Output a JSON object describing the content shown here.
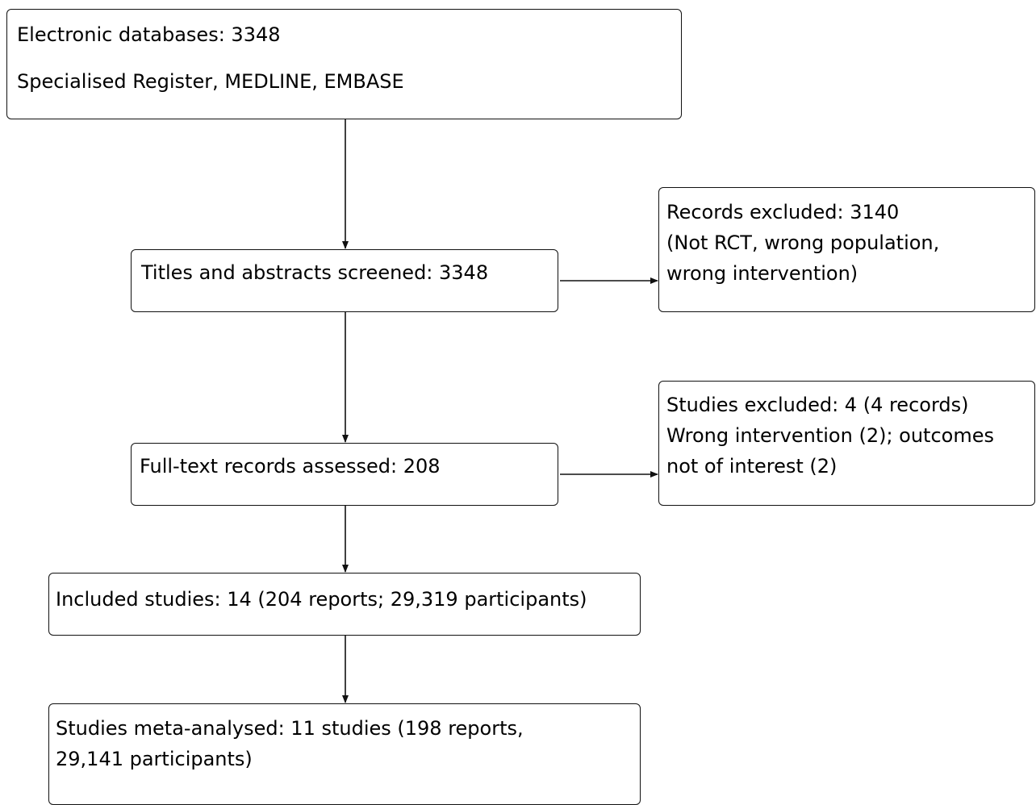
{
  "boxes": {
    "identification": {
      "lines": [
        "Electronic databases: 3348",
        "Specialised Register, MEDLINE, EMBASE"
      ]
    },
    "screening": {
      "lines": [
        "Titles and abstracts screened: 3348"
      ]
    },
    "records_excluded": {
      "lines": [
        "Records excluded: 3140",
        "(Not RCT, wrong population,",
        "wrong intervention)"
      ]
    },
    "full_text": {
      "lines": [
        "Full-text records assessed: 208"
      ]
    },
    "studies_excluded": {
      "lines": [
        "Studies excluded: 4 (4 records)",
        "Wrong intervention (2); outcomes",
        "not of interest (2)"
      ]
    },
    "included": {
      "lines": [
        "Included studies: 14 (204 reports; 29,319 participants)"
      ]
    },
    "meta_analysed": {
      "lines": [
        "Studies meta-analysed: 11 studies (198 reports,",
        "29,141 participants)"
      ]
    }
  }
}
